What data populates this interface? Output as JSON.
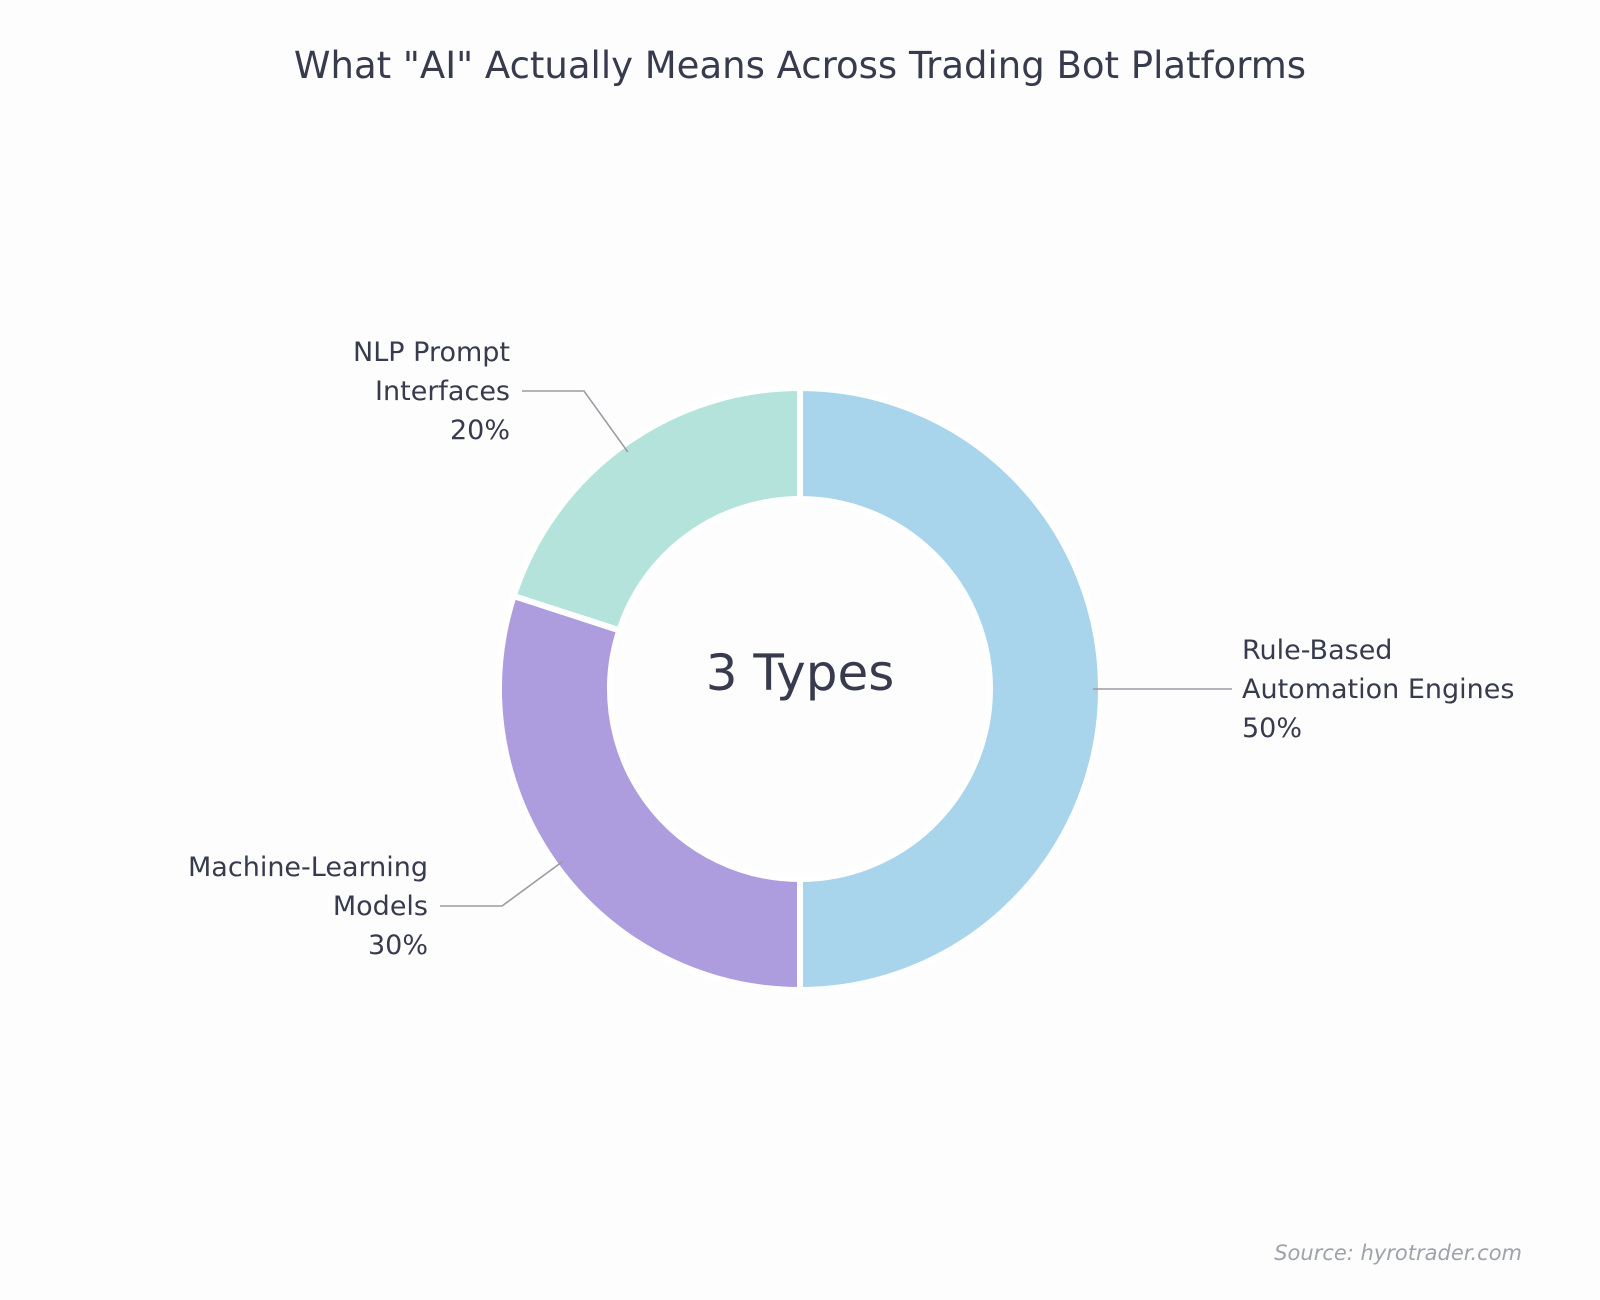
{
  "chart_data": {
    "type": "pie",
    "style": "donut",
    "title": "What \"AI\" Actually Means Across Trading Bot Platforms",
    "center_label": "3 Types",
    "source": "Source: hyrotrader.com",
    "slices": [
      {
        "label_lines": [
          "Rule-Based",
          "Automation Engines"
        ],
        "value": 50,
        "value_label": "50%",
        "color": "#a8d4ec"
      },
      {
        "label_lines": [
          "Machine-Learning",
          "Models"
        ],
        "value": 30,
        "value_label": "30%",
        "color": "#ad9ddf"
      },
      {
        "label_lines": [
          "NLP Prompt",
          "Interfaces"
        ],
        "value": 20,
        "value_label": "20%",
        "color": "#b3e3da"
      }
    ]
  }
}
